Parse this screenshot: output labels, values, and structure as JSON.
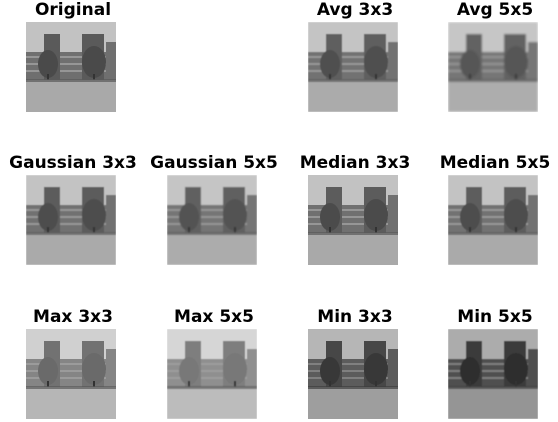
{
  "figure": {
    "panels": [
      {
        "title": "Original"
      },
      {
        "title": "Avg 3x3"
      },
      {
        "title": "Avg 5x5"
      },
      {
        "title": "Gaussian 3x3"
      },
      {
        "title": "Gaussian 5x5"
      },
      {
        "title": "Median 3x3"
      },
      {
        "title": "Median 5x5"
      },
      {
        "title": "Max 3x3"
      },
      {
        "title": "Max 5x5"
      },
      {
        "title": "Min 3x3"
      },
      {
        "title": "Min 5x5"
      }
    ]
  }
}
